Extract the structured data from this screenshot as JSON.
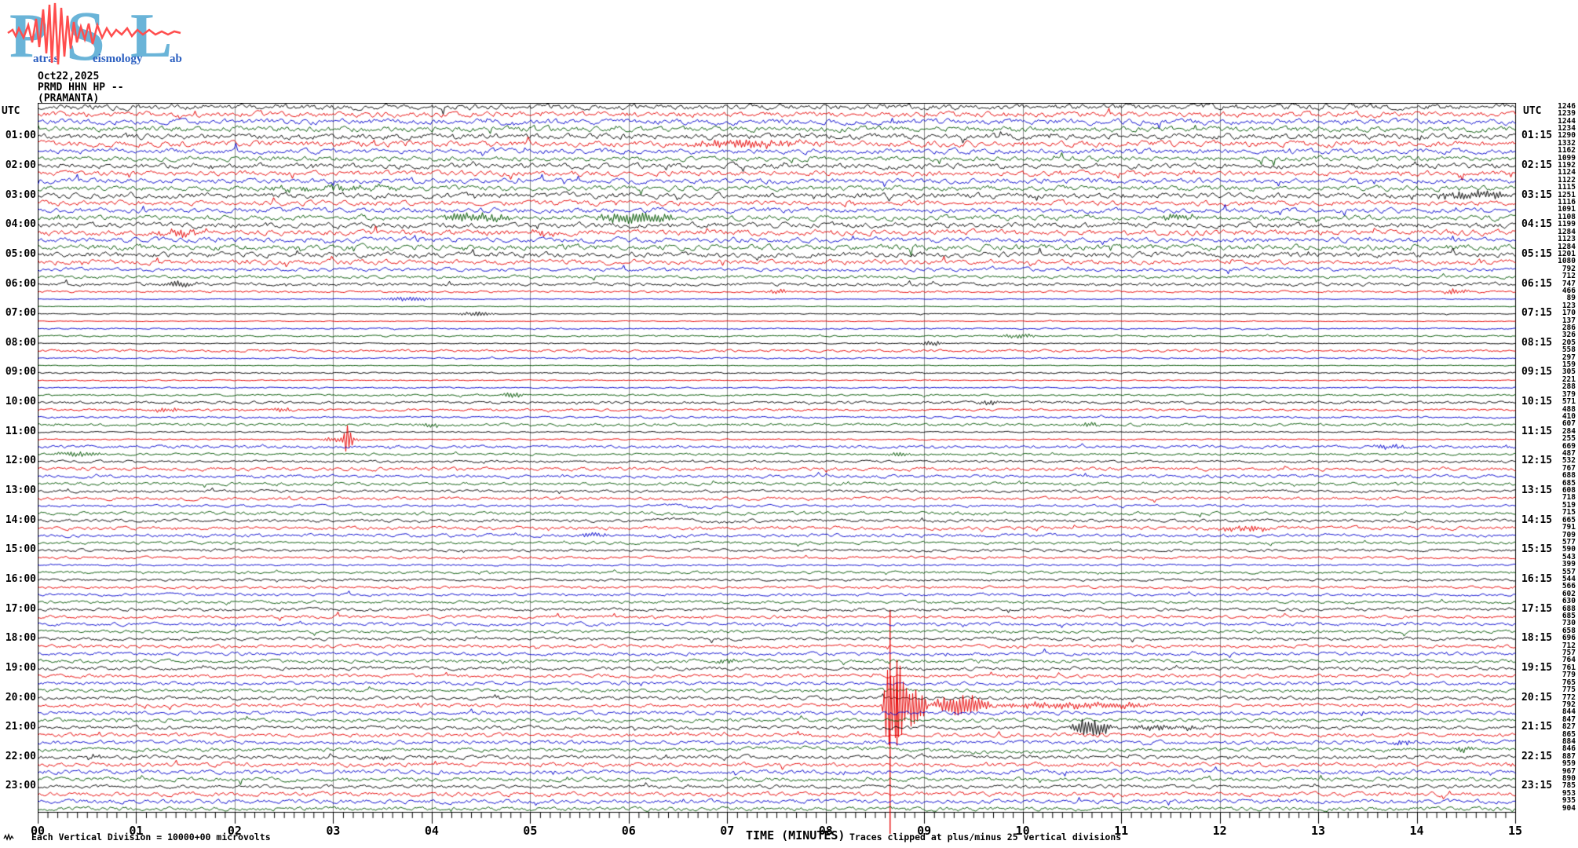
{
  "logo": {
    "letters": [
      "P",
      "S",
      "L"
    ],
    "words": [
      "atras",
      "eismology",
      "ab"
    ],
    "letter_color": "#6ab4d8",
    "word_color": "#2b5fc0",
    "squiggle_color": "#ff4d4d"
  },
  "header": {
    "date": "Oct22,2025",
    "station": "PRMD HHN HP --",
    "site": "(PRAMANTA)"
  },
  "plot": {
    "left_header": "UTC",
    "right_header": "UTC",
    "grid_color": "#8a8a8a",
    "border_color": "#000000",
    "trace_colors": [
      "#000000",
      "#e60000",
      "#0000cc",
      "#005500"
    ]
  },
  "xaxis": {
    "ticks": [
      "00",
      "01",
      "02",
      "03",
      "04",
      "05",
      "06",
      "07",
      "08",
      "09",
      "10",
      "11",
      "12",
      "13",
      "14",
      "15"
    ],
    "title": "TIME (MINUTES)",
    "note": "Traces clipped at plus/minus 25 vertical divisions"
  },
  "footer": {
    "scale_text": "Each Vertical Division = 10000+00 microvolts"
  },
  "chart_data": {
    "type": "line",
    "subtype": "helicorder",
    "station": "PRMD HHN HP --",
    "site": "(PRAMANTA)",
    "date_utc": "Oct22,2025",
    "minutes_per_row": 15,
    "rows_total": 96,
    "row_color_cycle": [
      "black",
      "red",
      "blue",
      "green"
    ],
    "hour_rows_start_at": 5,
    "hour_labels_left": [
      "01:00",
      "02:00",
      "03:00",
      "04:00",
      "05:00",
      "06:00",
      "07:00",
      "08:00",
      "09:00",
      "10:00",
      "11:00",
      "12:00",
      "13:00",
      "14:00",
      "15:00",
      "16:00",
      "17:00",
      "18:00",
      "19:00",
      "20:00",
      "21:00",
      "22:00",
      "23:00"
    ],
    "hour_labels_right": [
      "01:15",
      "02:15",
      "03:15",
      "04:15",
      "05:15",
      "06:15",
      "07:15",
      "08:15",
      "09:15",
      "10:15",
      "11:15",
      "12:15",
      "13:15",
      "14:15",
      "15:15",
      "16:15",
      "17:15",
      "18:15",
      "19:15",
      "20:15",
      "21:15",
      "22:15",
      "23:15"
    ],
    "amp_values": [
      1246,
      1239,
      1244,
      1234,
      1290,
      1332,
      1162,
      1099,
      1192,
      1124,
      1122,
      1115,
      1251,
      1116,
      1091,
      1108,
      1199,
      1284,
      1123,
      1284,
      1201,
      1080,
      792,
      712,
      747,
      466,
      89,
      123,
      170,
      137,
      286,
      326,
      205,
      558,
      297,
      159,
      305,
      221,
      288,
      379,
      571,
      488,
      410,
      607,
      284,
      255,
      669,
      487,
      532,
      767,
      688,
      685,
      608,
      718,
      519,
      715,
      665,
      791,
      709,
      577,
      590,
      543,
      399,
      557,
      544,
      566,
      602,
      630,
      688,
      685,
      730,
      658,
      696,
      712,
      757,
      764,
      761,
      779,
      765,
      775,
      772,
      792,
      844,
      847,
      827,
      865,
      884,
      846,
      887,
      959,
      967,
      890,
      785,
      953,
      935,
      904
    ],
    "events": [
      {
        "row": 6,
        "t0": 6.4,
        "t1": 7.9,
        "amp": 4,
        "kind": "burst"
      },
      {
        "row": 12,
        "t0": 2.2,
        "t1": 3.8,
        "amp": 2.6,
        "kind": "burst"
      },
      {
        "row": 13,
        "t0": 14.15,
        "t1": 15,
        "amp": 5,
        "kind": "burst"
      },
      {
        "row": 16,
        "t0": 4.05,
        "t1": 4.85,
        "amp": 5,
        "kind": "burst"
      },
      {
        "row": 16,
        "t0": 5.65,
        "t1": 6.5,
        "amp": 7,
        "kind": "burst"
      },
      {
        "row": 16,
        "t0": 11.3,
        "t1": 11.85,
        "amp": 3.5,
        "kind": "burst"
      },
      {
        "row": 18,
        "t0": 1.2,
        "t1": 1.75,
        "amp": 4.5,
        "kind": "burst"
      },
      {
        "row": 18,
        "t0": 4.95,
        "t1": 5.25,
        "amp": 3.5,
        "kind": "burst"
      },
      {
        "row": 25,
        "t0": 1.25,
        "t1": 1.65,
        "amp": 4,
        "kind": "burst"
      },
      {
        "row": 26,
        "t0": 7.4,
        "t1": 7.65,
        "amp": 3,
        "kind": "burst"
      },
      {
        "row": 26,
        "t0": 14.25,
        "t1": 14.55,
        "amp": 3.5,
        "kind": "burst"
      },
      {
        "row": 27,
        "t0": 3.45,
        "t1": 4.1,
        "amp": 2.8,
        "kind": "burst"
      },
      {
        "row": 29,
        "t0": 4.25,
        "t1": 4.65,
        "amp": 3,
        "kind": "burst"
      },
      {
        "row": 32,
        "t0": 9.75,
        "t1": 10.15,
        "amp": 3,
        "kind": "burst"
      },
      {
        "row": 33,
        "t0": 8.95,
        "t1": 9.2,
        "amp": 3.5,
        "kind": "burst"
      },
      {
        "row": 40,
        "t0": 4.7,
        "t1": 4.95,
        "amp": 3.5,
        "kind": "burst"
      },
      {
        "row": 41,
        "t0": 9.5,
        "t1": 9.8,
        "amp": 3.5,
        "kind": "burst"
      },
      {
        "row": 42,
        "t0": 1.15,
        "t1": 1.45,
        "amp": 3,
        "kind": "burst"
      },
      {
        "row": 42,
        "t0": 2.35,
        "t1": 2.6,
        "amp": 2.5,
        "kind": "burst"
      },
      {
        "row": 44,
        "t0": 3.85,
        "t1": 4.1,
        "amp": 3,
        "kind": "burst"
      },
      {
        "row": 44,
        "t0": 10.55,
        "t1": 10.8,
        "amp": 3,
        "kind": "burst"
      },
      {
        "row": 46,
        "t0": 2.85,
        "t1": 3.3,
        "amp": 3.5,
        "kind": "burst"
      },
      {
        "row": 46,
        "t0": 3.1,
        "t1": 3.2,
        "amp": 20,
        "kind": "spike"
      },
      {
        "row": 47,
        "t0": 13.5,
        "t1": 13.95,
        "amp": 2.8,
        "kind": "burst"
      },
      {
        "row": 47,
        "t0": 14.8,
        "t1": 15,
        "amp": 2.2,
        "kind": "burst"
      },
      {
        "row": 48,
        "t0": 0.1,
        "t1": 0.7,
        "amp": 3.2,
        "kind": "burst"
      },
      {
        "row": 48,
        "t0": 8.6,
        "t1": 8.9,
        "amp": 2.8,
        "kind": "burst"
      },
      {
        "row": 55,
        "t0": 6.2,
        "t1": 7.1,
        "amp": 2.4,
        "kind": "wave"
      },
      {
        "row": 57,
        "t0": 6.1,
        "t1": 7.3,
        "amp": 3,
        "kind": "wave"
      },
      {
        "row": 58,
        "t0": 11.95,
        "t1": 12.55,
        "amp": 3.8,
        "kind": "burst"
      },
      {
        "row": 59,
        "t0": 5.45,
        "t1": 5.8,
        "amp": 3,
        "kind": "burst"
      },
      {
        "row": 76,
        "t0": 6.85,
        "t1": 7.15,
        "amp": 2.6,
        "kind": "burst"
      },
      {
        "row": 82,
        "t0": 8.55,
        "t1": 9.05,
        "amp": 34,
        "kind": "burst"
      },
      {
        "row": 82,
        "t0": 8.58,
        "t1": 8.78,
        "amp": 55,
        "kind": "burst"
      },
      {
        "row": 82,
        "t0": 9.05,
        "t1": 9.7,
        "amp": 13,
        "kind": "burst"
      },
      {
        "row": 82,
        "t0": 9.7,
        "t1": 11.4,
        "amp": 4.5,
        "kind": "burst"
      },
      {
        "row": 85,
        "t0": 10.45,
        "t1": 10.9,
        "amp": 11,
        "kind": "burst"
      },
      {
        "row": 85,
        "t0": 10.88,
        "t1": 12.1,
        "amp": 3,
        "kind": "burst"
      },
      {
        "row": 87,
        "t0": 13.7,
        "t1": 14.0,
        "amp": 2.5,
        "kind": "burst"
      },
      {
        "row": 88,
        "t0": 6.6,
        "t1": 11.5,
        "amp": 3.2,
        "kind": "wave"
      },
      {
        "row": 88,
        "t0": 14.35,
        "t1": 14.6,
        "amp": 3.5,
        "kind": "burst"
      },
      {
        "row": 89,
        "t0": 0.45,
        "t1": 0.65,
        "amp": 2.5,
        "kind": "burst"
      },
      {
        "row": 89,
        "t0": 3.45,
        "t1": 3.6,
        "amp": 2,
        "kind": "burst"
      }
    ],
    "big_event": {
      "row": 82,
      "utc_start": "20:15",
      "minute": 8.65,
      "color": "red",
      "clip_note": "clipped at plus/minus 25 vertical divisions"
    },
    "red_line": {
      "minute": 8.65,
      "from_row": 70,
      "aftershock_minute": 8.72,
      "aftershock_from_row": 82,
      "aftershock_to_row": 87
    }
  }
}
